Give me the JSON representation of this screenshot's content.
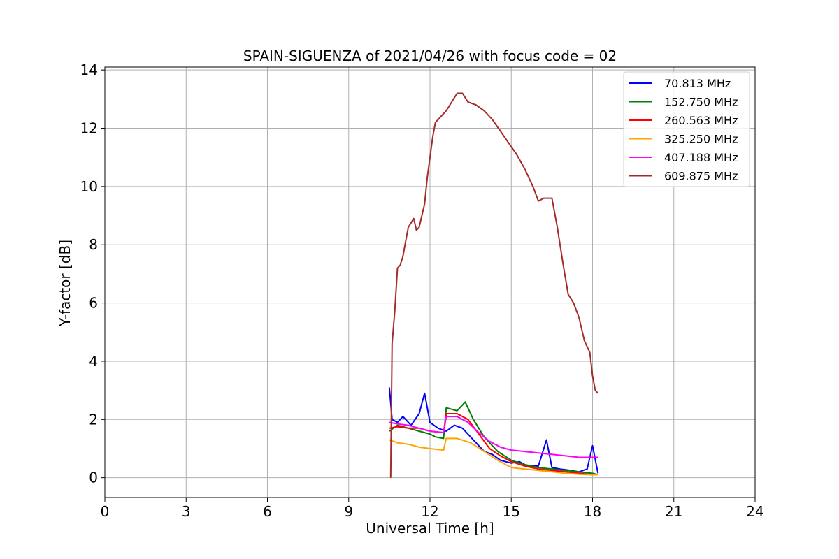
{
  "chart_data": {
    "type": "line",
    "title": "SPAIN-SIGUENZA of 2021/04/26 with focus code = 02",
    "xlabel": "Universal Time [h]",
    "ylabel": "Y-factor [dB]",
    "xlim": [
      0,
      24
    ],
    "ylim": [
      -0.68,
      14.1
    ],
    "xticks": [
      0,
      3,
      6,
      9,
      12,
      15,
      18,
      21,
      24
    ],
    "yticks": [
      0,
      2,
      4,
      6,
      8,
      10,
      12,
      14
    ],
    "grid": true,
    "legend_position": "top-right",
    "series": [
      {
        "name": " 70.813 MHz",
        "color": "#0000ff",
        "points": [
          [
            10.5,
            3.1
          ],
          [
            10.6,
            2.0
          ],
          [
            10.8,
            1.9
          ],
          [
            11.0,
            2.1
          ],
          [
            11.3,
            1.8
          ],
          [
            11.6,
            2.2
          ],
          [
            11.8,
            2.9
          ],
          [
            12.0,
            1.9
          ],
          [
            12.3,
            1.7
          ],
          [
            12.6,
            1.6
          ],
          [
            12.9,
            1.8
          ],
          [
            13.2,
            1.7
          ],
          [
            13.6,
            1.3
          ],
          [
            14.0,
            0.9
          ],
          [
            14.3,
            0.8
          ],
          [
            14.6,
            0.6
          ],
          [
            15.0,
            0.5
          ],
          [
            15.3,
            0.55
          ],
          [
            15.6,
            0.4
          ],
          [
            16.0,
            0.4
          ],
          [
            16.3,
            1.3
          ],
          [
            16.5,
            0.35
          ],
          [
            16.8,
            0.3
          ],
          [
            17.2,
            0.25
          ],
          [
            17.5,
            0.2
          ],
          [
            17.8,
            0.3
          ],
          [
            18.0,
            1.1
          ],
          [
            18.2,
            0.15
          ]
        ]
      },
      {
        "name": "152.750 MHz",
        "color": "#008000",
        "points": [
          [
            10.5,
            1.6
          ],
          [
            10.8,
            1.8
          ],
          [
            11.2,
            1.7
          ],
          [
            11.6,
            1.6
          ],
          [
            12.0,
            1.5
          ],
          [
            12.2,
            1.4
          ],
          [
            12.5,
            1.35
          ],
          [
            12.6,
            2.4
          ],
          [
            13.0,
            2.3
          ],
          [
            13.3,
            2.6
          ],
          [
            13.6,
            2.0
          ],
          [
            14.0,
            1.4
          ],
          [
            14.5,
            0.9
          ],
          [
            15.0,
            0.6
          ],
          [
            15.5,
            0.45
          ],
          [
            16.0,
            0.35
          ],
          [
            16.5,
            0.3
          ],
          [
            17.0,
            0.25
          ],
          [
            17.5,
            0.2
          ],
          [
            18.0,
            0.15
          ],
          [
            18.2,
            0.1
          ]
        ]
      },
      {
        "name": "260.563 MHz",
        "color": "#ff0000",
        "points": [
          [
            10.5,
            1.7
          ],
          [
            10.8,
            1.75
          ],
          [
            11.2,
            1.7
          ],
          [
            11.6,
            1.7
          ],
          [
            12.0,
            1.6
          ],
          [
            12.5,
            1.55
          ],
          [
            12.6,
            2.2
          ],
          [
            13.0,
            2.2
          ],
          [
            13.4,
            2.0
          ],
          [
            13.8,
            1.5
          ],
          [
            14.2,
            1.0
          ],
          [
            14.6,
            0.75
          ],
          [
            15.0,
            0.55
          ],
          [
            15.5,
            0.4
          ],
          [
            16.0,
            0.3
          ],
          [
            16.5,
            0.25
          ],
          [
            17.0,
            0.2
          ],
          [
            17.5,
            0.15
          ],
          [
            18.0,
            0.1
          ],
          [
            18.2,
            0.1
          ]
        ]
      },
      {
        "name": "325.250 MHz",
        "color": "#ffa500",
        "points": [
          [
            10.5,
            1.3
          ],
          [
            10.8,
            1.2
          ],
          [
            11.2,
            1.15
          ],
          [
            11.6,
            1.05
          ],
          [
            12.0,
            1.0
          ],
          [
            12.5,
            0.95
          ],
          [
            12.6,
            1.35
          ],
          [
            13.0,
            1.35
          ],
          [
            13.5,
            1.2
          ],
          [
            14.0,
            0.9
          ],
          [
            14.5,
            0.6
          ],
          [
            15.0,
            0.35
          ],
          [
            15.5,
            0.3
          ],
          [
            16.0,
            0.25
          ],
          [
            16.5,
            0.2
          ],
          [
            17.0,
            0.15
          ],
          [
            17.5,
            0.12
          ],
          [
            18.0,
            0.1
          ],
          [
            18.2,
            0.1
          ]
        ]
      },
      {
        "name": "407.188 MHz",
        "color": "#ff00ff",
        "points": [
          [
            10.5,
            1.9
          ],
          [
            10.8,
            1.85
          ],
          [
            11.2,
            1.8
          ],
          [
            11.6,
            1.7
          ],
          [
            12.0,
            1.6
          ],
          [
            12.5,
            1.55
          ],
          [
            12.6,
            2.1
          ],
          [
            13.0,
            2.1
          ],
          [
            13.4,
            1.9
          ],
          [
            13.8,
            1.55
          ],
          [
            14.2,
            1.25
          ],
          [
            14.6,
            1.05
          ],
          [
            15.0,
            0.95
          ],
          [
            15.5,
            0.9
          ],
          [
            16.0,
            0.85
          ],
          [
            16.5,
            0.8
          ],
          [
            17.0,
            0.75
          ],
          [
            17.5,
            0.7
          ],
          [
            18.0,
            0.7
          ],
          [
            18.2,
            0.7
          ]
        ]
      },
      {
        "name": "609.875 MHz",
        "color": "#a52a2a",
        "points": [
          [
            10.55,
            0.0
          ],
          [
            10.6,
            4.6
          ],
          [
            10.7,
            5.7
          ],
          [
            10.8,
            7.2
          ],
          [
            10.9,
            7.3
          ],
          [
            11.0,
            7.6
          ],
          [
            11.1,
            8.1
          ],
          [
            11.2,
            8.6
          ],
          [
            11.4,
            8.9
          ],
          [
            11.5,
            8.5
          ],
          [
            11.6,
            8.6
          ],
          [
            11.8,
            9.4
          ],
          [
            11.9,
            10.3
          ],
          [
            12.0,
            11.0
          ],
          [
            12.1,
            11.7
          ],
          [
            12.2,
            12.2
          ],
          [
            12.4,
            12.4
          ],
          [
            12.6,
            12.6
          ],
          [
            12.8,
            12.9
          ],
          [
            13.0,
            13.2
          ],
          [
            13.2,
            13.2
          ],
          [
            13.4,
            12.9
          ],
          [
            13.7,
            12.8
          ],
          [
            14.0,
            12.6
          ],
          [
            14.3,
            12.3
          ],
          [
            14.6,
            11.9
          ],
          [
            14.9,
            11.5
          ],
          [
            15.2,
            11.1
          ],
          [
            15.5,
            10.6
          ],
          [
            15.8,
            10.0
          ],
          [
            16.0,
            9.5
          ],
          [
            16.2,
            9.6
          ],
          [
            16.5,
            9.6
          ],
          [
            16.7,
            8.6
          ],
          [
            16.9,
            7.4
          ],
          [
            17.1,
            6.3
          ],
          [
            17.3,
            6.0
          ],
          [
            17.5,
            5.5
          ],
          [
            17.7,
            4.7
          ],
          [
            17.9,
            4.3
          ],
          [
            18.0,
            3.5
          ],
          [
            18.1,
            3.0
          ],
          [
            18.2,
            2.9
          ]
        ]
      }
    ]
  }
}
